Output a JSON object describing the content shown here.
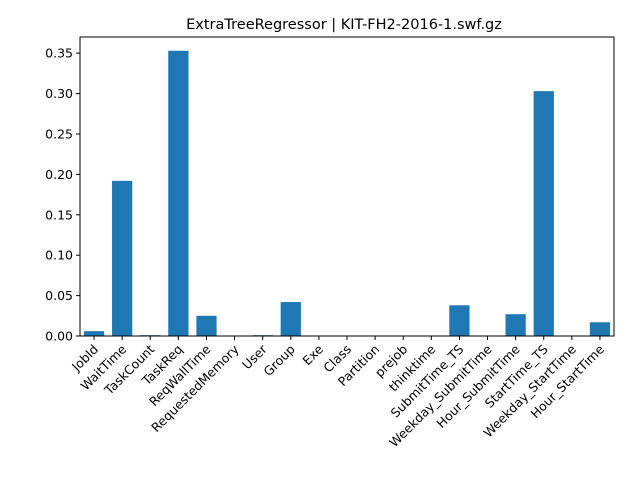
{
  "chart_data": {
    "type": "bar",
    "title": "ExtraTreeRegressor | KIT-FH2-2016-1.swf.gz",
    "xlabel": "",
    "ylabel": "",
    "ylim": [
      0,
      0.37
    ],
    "yticks": [
      0.0,
      0.05,
      0.1,
      0.15,
      0.2,
      0.25,
      0.3,
      0.35
    ],
    "ytick_labels": [
      "0.00",
      "0.05",
      "0.10",
      "0.15",
      "0.20",
      "0.25",
      "0.30",
      "0.35"
    ],
    "grid": false,
    "bar_color": "#1f77b4",
    "categories": [
      "JobId",
      "WaitTime",
      "TaskCount",
      "TaskReq",
      "ReqWallTime",
      "RequestedMemory",
      "User",
      "Group",
      "Exe",
      "Class",
      "Partition",
      "prejob",
      "thinktime",
      "SubmitTime_TS",
      "Weekday_SubmitTime",
      "Hour_SubmitTime",
      "StartTime_TS",
      "Weekday_StartTime",
      "Hour_StartTime"
    ],
    "values": [
      0.006,
      0.192,
      0.001,
      0.353,
      0.025,
      0.0,
      0.001,
      0.042,
      0.0,
      0.0,
      0.0,
      0.0,
      0.0,
      0.038,
      0.0,
      0.027,
      0.303,
      0.0,
      0.017
    ]
  }
}
